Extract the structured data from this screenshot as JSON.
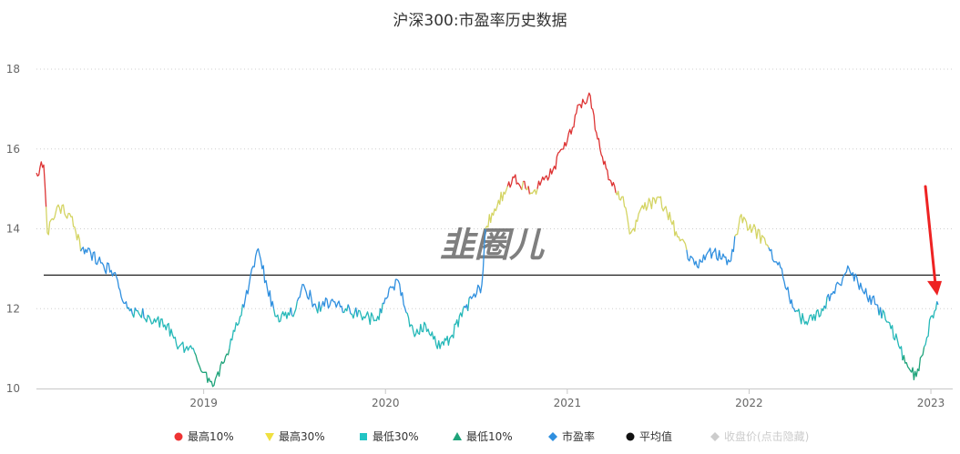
{
  "chart_data": {
    "type": "line",
    "title": "沪深300:市盈率历史数据",
    "xlabel": "",
    "ylabel": "",
    "ylim": [
      10,
      18
    ],
    "yticks": [
      10,
      12,
      14,
      16,
      18
    ],
    "xlim": [
      2018.08,
      2023.12
    ],
    "xticks": [
      {
        "value": 2019,
        "label": "2019"
      },
      {
        "value": 2020,
        "label": "2020"
      },
      {
        "value": 2021,
        "label": "2021"
      },
      {
        "value": 2022,
        "label": "2022"
      },
      {
        "value": 2023,
        "label": "2023"
      }
    ],
    "grid": true,
    "mean_line": 12.84,
    "watermark": "韭圈儿",
    "thresholds": {
      "high10": 15.0,
      "high30": 13.6,
      "low30": 12.0,
      "low10": 10.9
    },
    "band_colors": {
      "high10": "#dd3333",
      "high30": "#d4d463",
      "mid": "#2f8fdf",
      "low30": "#25b8b8",
      "low10": "#1ea37a"
    },
    "legend_position": "bottom-center",
    "legend": [
      {
        "label": "最高10%",
        "color": "#ee3333",
        "marker": "circle"
      },
      {
        "label": "最高30%",
        "color": "#f0e040",
        "marker": "triangle-down"
      },
      {
        "label": "最低30%",
        "color": "#22c4c4",
        "marker": "square"
      },
      {
        "label": "最低10%",
        "color": "#1ea37a",
        "marker": "triangle-up"
      },
      {
        "label": "市盈率",
        "color": "#2f8fdf",
        "marker": "diamond"
      },
      {
        "label": "平均值",
        "color": "#111111",
        "marker": "circle"
      },
      {
        "label": "收盘价(点击隐藏)",
        "color": "#cccccc",
        "marker": "diamond",
        "muted": true
      }
    ],
    "anchors": [
      [
        2018.08,
        15.4
      ],
      [
        2018.12,
        15.6
      ],
      [
        2018.14,
        13.9
      ],
      [
        2018.2,
        14.6
      ],
      [
        2018.27,
        14.3
      ],
      [
        2018.33,
        13.5
      ],
      [
        2018.42,
        13.2
      ],
      [
        2018.52,
        12.8
      ],
      [
        2018.58,
        12.0
      ],
      [
        2018.7,
        11.8
      ],
      [
        2018.8,
        11.6
      ],
      [
        2018.85,
        11.1
      ],
      [
        2018.95,
        10.9
      ],
      [
        2019.0,
        10.4
      ],
      [
        2019.05,
        10.05
      ],
      [
        2019.12,
        10.8
      ],
      [
        2019.2,
        11.8
      ],
      [
        2019.25,
        12.6
      ],
      [
        2019.3,
        13.5
      ],
      [
        2019.35,
        12.5
      ],
      [
        2019.4,
        11.8
      ],
      [
        2019.5,
        11.9
      ],
      [
        2019.55,
        12.6
      ],
      [
        2019.62,
        12.0
      ],
      [
        2019.7,
        12.2
      ],
      [
        2019.78,
        12.0
      ],
      [
        2019.88,
        11.8
      ],
      [
        2019.95,
        11.7
      ],
      [
        2020.02,
        12.5
      ],
      [
        2020.07,
        12.7
      ],
      [
        2020.1,
        12.1
      ],
      [
        2020.16,
        11.3
      ],
      [
        2020.22,
        11.6
      ],
      [
        2020.3,
        11.0
      ],
      [
        2020.36,
        11.3
      ],
      [
        2020.42,
        11.8
      ],
      [
        2020.48,
        12.3
      ],
      [
        2020.53,
        12.6
      ],
      [
        2020.55,
        14.0
      ],
      [
        2020.6,
        14.5
      ],
      [
        2020.7,
        15.3
      ],
      [
        2020.8,
        14.9
      ],
      [
        2020.9,
        15.3
      ],
      [
        2021.0,
        16.2
      ],
      [
        2021.05,
        16.9
      ],
      [
        2021.12,
        17.4
      ],
      [
        2021.18,
        16.0
      ],
      [
        2021.24,
        15.2
      ],
      [
        2021.3,
        14.8
      ],
      [
        2021.35,
        13.9
      ],
      [
        2021.42,
        14.5
      ],
      [
        2021.5,
        14.8
      ],
      [
        2021.57,
        14.2
      ],
      [
        2021.62,
        13.7
      ],
      [
        2021.7,
        13.1
      ],
      [
        2021.8,
        13.4
      ],
      [
        2021.9,
        13.2
      ],
      [
        2021.95,
        14.3
      ],
      [
        2022.02,
        14.0
      ],
      [
        2022.1,
        13.6
      ],
      [
        2022.18,
        13.0
      ],
      [
        2022.22,
        12.3
      ],
      [
        2022.28,
        11.8
      ],
      [
        2022.32,
        11.6
      ],
      [
        2022.4,
        12.0
      ],
      [
        2022.5,
        12.6
      ],
      [
        2022.55,
        13.0
      ],
      [
        2022.62,
        12.5
      ],
      [
        2022.7,
        12.1
      ],
      [
        2022.78,
        11.5
      ],
      [
        2022.83,
        11.0
      ],
      [
        2022.88,
        10.5
      ],
      [
        2022.92,
        10.3
      ],
      [
        2022.97,
        11.1
      ],
      [
        2023.0,
        11.8
      ],
      [
        2023.04,
        12.1
      ]
    ],
    "annotation": {
      "type": "arrow",
      "color": "#ee2222",
      "points_to": [
        2023.04,
        12.1
      ]
    }
  }
}
